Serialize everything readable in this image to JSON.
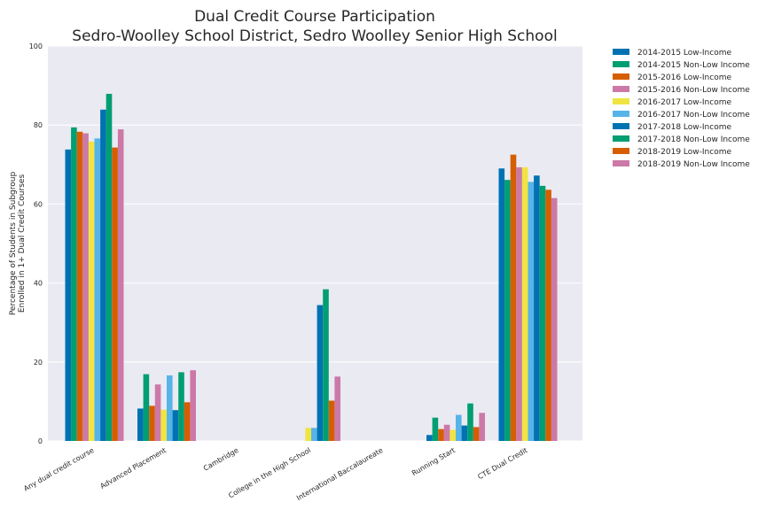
{
  "chart_data": {
    "type": "bar",
    "title": [
      "Dual Credit Course Participation",
      "Sedro-Woolley School District, Sedro Woolley Senior High School"
    ],
    "xlabel": "",
    "ylabel": [
      "Percentage of Students in Subgroup",
      "Enrolled in 1+ Dual Credit Courses"
    ],
    "ylim": [
      0,
      100
    ],
    "yticks": [
      "0",
      "20",
      "40",
      "60",
      "80",
      "100"
    ],
    "grid": true,
    "legend_position": "outside-right-top",
    "categories": [
      "Any dual credit course",
      "Advanced Placement",
      "Cambridge",
      "College in the High School",
      "International Baccalaureate",
      "Running Start",
      "CTE Dual Credit"
    ],
    "series": [
      {
        "name": "2014-2015 Low-Income",
        "color": "#0072b2",
        "values": [
          73.8,
          8.2,
          0,
          0,
          0,
          1.5,
          69.0
        ]
      },
      {
        "name": "2014-2015 Non-Low Income",
        "color": "#009e73",
        "values": [
          79.4,
          16.9,
          0,
          0,
          0,
          5.9,
          66.1
        ]
      },
      {
        "name": "2015-2016 Low-Income",
        "color": "#d55e00",
        "values": [
          78.3,
          8.9,
          0,
          0,
          0,
          3.0,
          72.5
        ]
      },
      {
        "name": "2015-2016 Non-Low Income",
        "color": "#cc79a7",
        "values": [
          77.9,
          14.3,
          0,
          0,
          0,
          4.1,
          69.3
        ]
      },
      {
        "name": "2016-2017 Low-Income",
        "color": "#f0e442",
        "values": [
          75.8,
          7.9,
          0,
          3.3,
          0,
          2.8,
          69.3
        ]
      },
      {
        "name": "2016-2017 Non-Low Income",
        "color": "#56b4e9",
        "values": [
          76.6,
          16.6,
          0,
          3.3,
          0,
          6.6,
          65.6
        ]
      },
      {
        "name": "2017-2018 Low-Income",
        "color": "#0072b2",
        "values": [
          83.9,
          7.8,
          0,
          34.4,
          0,
          3.9,
          67.2
        ]
      },
      {
        "name": "2017-2018 Non-Low Income",
        "color": "#009e73",
        "values": [
          87.9,
          17.4,
          0,
          38.4,
          0,
          9.5,
          64.6
        ]
      },
      {
        "name": "2018-2019 Low-Income",
        "color": "#d55e00",
        "values": [
          74.3,
          9.8,
          0,
          10.2,
          0,
          3.5,
          63.6
        ]
      },
      {
        "name": "2018-2019 Non-Low Income",
        "color": "#cc79a7",
        "values": [
          78.9,
          17.9,
          0,
          16.3,
          0,
          7.1,
          61.5
        ]
      }
    ]
  }
}
